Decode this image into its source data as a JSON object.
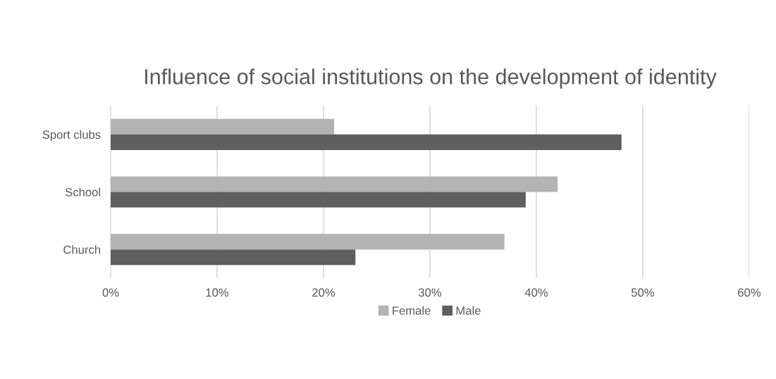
{
  "chart_data": {
    "type": "bar",
    "orientation": "horizontal",
    "title": "Influence of social institutions on the development of identity",
    "categories": [
      "Sport clubs",
      "School",
      "Church"
    ],
    "series": [
      {
        "name": "Female",
        "color": "#b3b3b3",
        "values": [
          21,
          42,
          37
        ]
      },
      {
        "name": "Male",
        "color": "#5f5f5f",
        "values": [
          48,
          39,
          23
        ]
      }
    ],
    "xlim": [
      0,
      60
    ],
    "xticks": [
      {
        "value": 0,
        "label": "0%"
      },
      {
        "value": 10,
        "label": "10%"
      },
      {
        "value": 20,
        "label": "20%"
      },
      {
        "value": 30,
        "label": "30%"
      },
      {
        "value": 40,
        "label": "40%"
      },
      {
        "value": 50,
        "label": "50%"
      },
      {
        "value": 60,
        "label": "60%"
      }
    ],
    "grid": "x",
    "legend": "bottom"
  }
}
